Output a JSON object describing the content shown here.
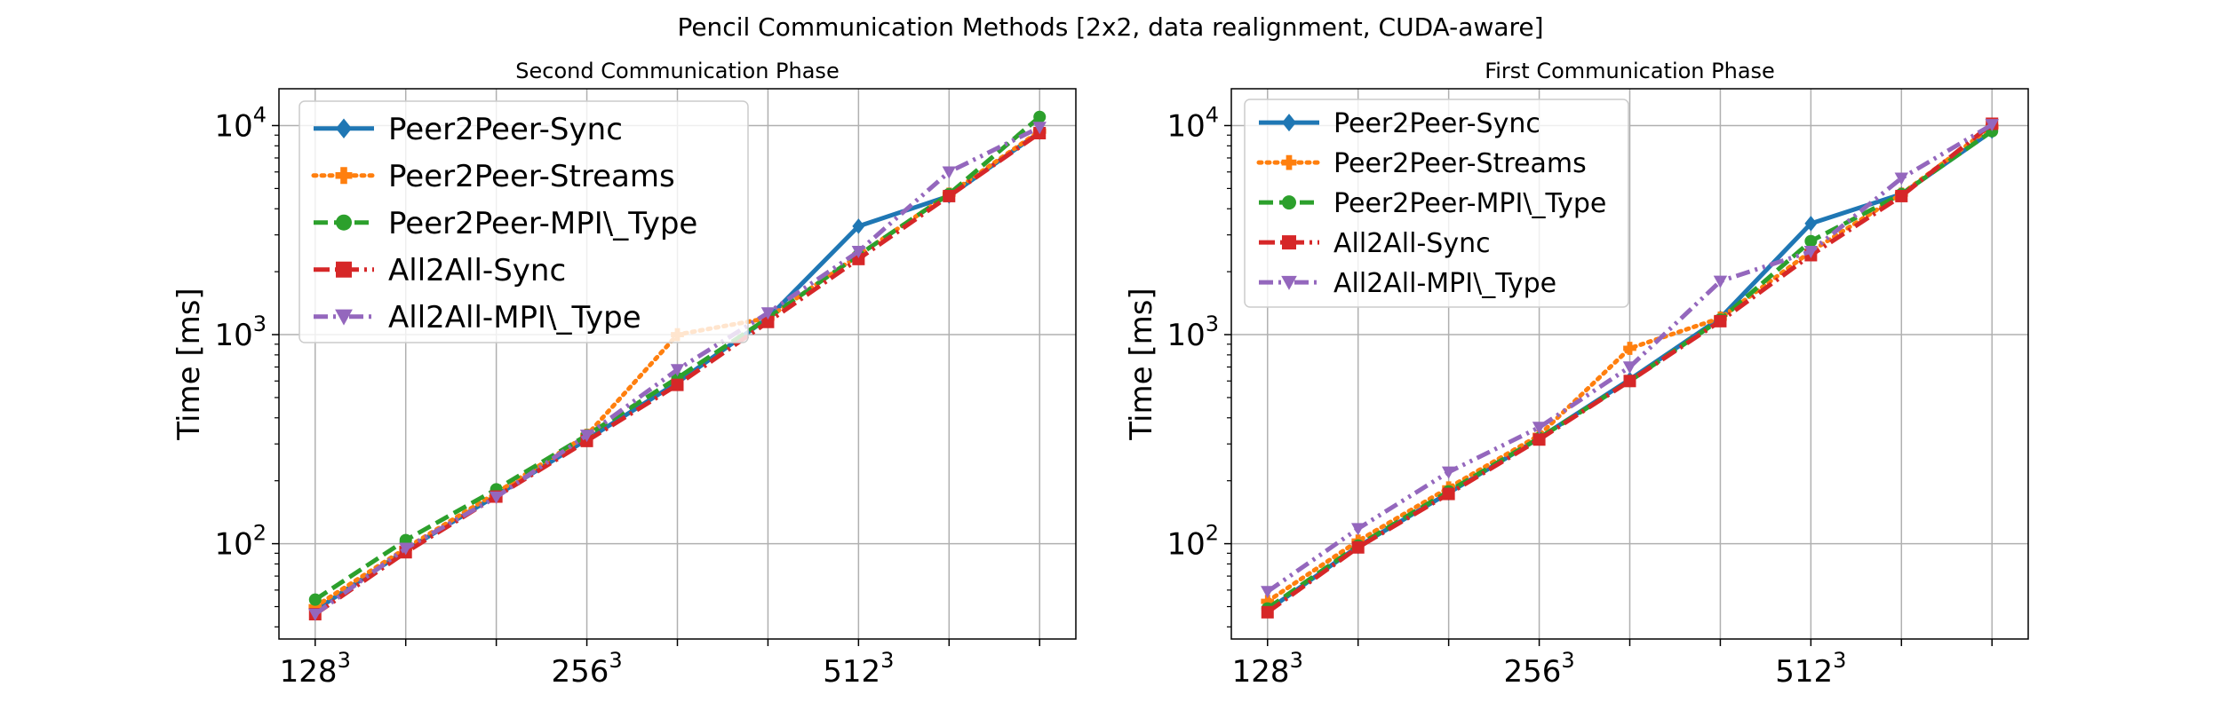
{
  "figure": {
    "suptitle": "Pencil Communication Methods [2x2, data realignment, CUDA-aware]"
  },
  "colors": {
    "blue": "#1f77b4",
    "orange": "#ff7f0e",
    "green": "#2ca02c",
    "red": "#d62728",
    "purple": "#9467bd"
  },
  "chart_data": [
    {
      "type": "line",
      "title": "Second Communication Phase",
      "ylabel": "Time [ms]",
      "xlabel": "",
      "yscale": "log",
      "ylim": [
        35,
        15000
      ],
      "xlim": [
        -0.4,
        8.4
      ],
      "x": [
        0,
        1,
        2,
        3,
        4,
        5,
        6,
        7,
        8
      ],
      "xtick_labels": [
        {
          "x": 0,
          "base": "128",
          "exp": "3"
        },
        {
          "x": 3,
          "base": "256",
          "exp": "3"
        },
        {
          "x": 6,
          "base": "512",
          "exp": "3"
        }
      ],
      "ytick_labels": [
        {
          "value": 100,
          "base": "10",
          "exp": "2"
        },
        {
          "value": 1000,
          "base": "10",
          "exp": "3"
        },
        {
          "value": 10000,
          "base": "10",
          "exp": "4"
        }
      ],
      "grid": true,
      "legend_position": "upper-left",
      "series": [
        {
          "name": "Peer2Peer-Sync",
          "color": "#1f77b4",
          "dash": "solid",
          "marker": "diamond",
          "values": [
            48,
            93,
            170,
            315,
            590,
            1200,
            3300,
            4600,
            9300
          ]
        },
        {
          "name": "Peer2Peer-Streams",
          "color": "#ff7f0e",
          "dash": "dotted",
          "marker": "plus",
          "values": [
            50,
            95,
            175,
            330,
            1000,
            1200,
            2400,
            4700,
            9400
          ]
        },
        {
          "name": "Peer2Peer-MPI\\_Type",
          "color": "#2ca02c",
          "dash": "dashed",
          "marker": "circle",
          "values": [
            54,
            104,
            182,
            330,
            620,
            1200,
            2400,
            4700,
            11000
          ]
        },
        {
          "name": "All2All-Sync",
          "color": "#d62728",
          "dash": "dashdot",
          "marker": "square",
          "values": [
            46,
            91,
            168,
            310,
            575,
            1150,
            2300,
            4600,
            9200
          ]
        },
        {
          "name": "All2All-MPI\\_Type",
          "color": "#9467bd",
          "dash": "dashdotdot",
          "marker": "triangle_down",
          "values": [
            46,
            95,
            167,
            330,
            680,
            1270,
            2500,
            6000,
            9800
          ]
        }
      ]
    },
    {
      "type": "line",
      "title": "First Communication Phase",
      "ylabel": "Time [ms]",
      "xlabel": "",
      "yscale": "log",
      "ylim": [
        35,
        15000
      ],
      "xlim": [
        -0.4,
        8.4
      ],
      "x": [
        0,
        1,
        2,
        3,
        4,
        5,
        6,
        7,
        8
      ],
      "xtick_labels": [
        {
          "x": 0,
          "base": "128",
          "exp": "3"
        },
        {
          "x": 3,
          "base": "256",
          "exp": "3"
        },
        {
          "x": 6,
          "base": "512",
          "exp": "3"
        }
      ],
      "ytick_labels": [
        {
          "value": 100,
          "base": "10",
          "exp": "2"
        },
        {
          "value": 1000,
          "base": "10",
          "exp": "3"
        },
        {
          "value": 10000,
          "base": "10",
          "exp": "4"
        }
      ],
      "grid": true,
      "legend_position": "upper-left",
      "series": [
        {
          "name": "Peer2Peer-Sync",
          "color": "#1f77b4",
          "dash": "solid",
          "marker": "diamond",
          "values": [
            48,
            97,
            175,
            320,
            610,
            1200,
            3400,
            4700,
            9400
          ]
        },
        {
          "name": "Peer2Peer-Streams",
          "color": "#ff7f0e",
          "dash": "dotted",
          "marker": "plus",
          "values": [
            53,
            103,
            185,
            330,
            860,
            1200,
            2500,
            4700,
            9900
          ]
        },
        {
          "name": "Peer2Peer-MPI\\_Type",
          "color": "#2ca02c",
          "dash": "dashed",
          "marker": "circle",
          "values": [
            49,
            98,
            178,
            320,
            600,
            1180,
            2800,
            4700,
            9400
          ]
        },
        {
          "name": "All2All-Sync",
          "color": "#d62728",
          "dash": "dashdot",
          "marker": "square",
          "values": [
            47,
            96,
            173,
            315,
            600,
            1160,
            2400,
            4600,
            10200
          ]
        },
        {
          "name": "All2All-MPI\\_Type",
          "color": "#9467bd",
          "dash": "dashdotdot",
          "marker": "triangle_down",
          "values": [
            59,
            118,
            220,
            360,
            700,
            1800,
            2500,
            5600,
            10100
          ]
        }
      ]
    }
  ]
}
